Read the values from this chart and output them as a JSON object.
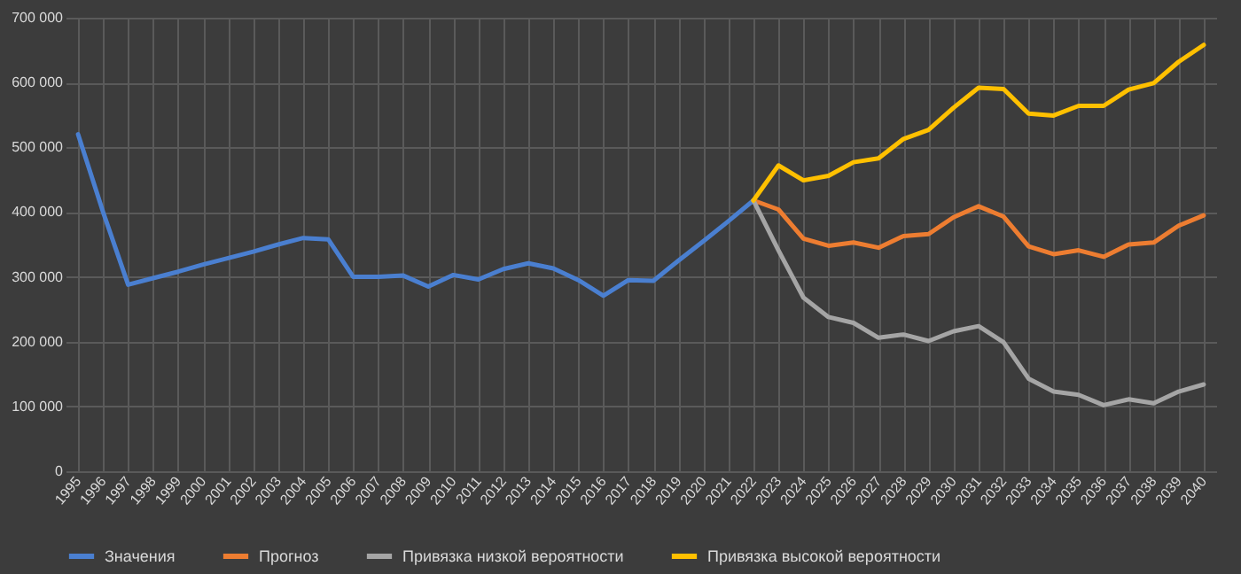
{
  "chart_data": {
    "type": "line",
    "categories": [
      "1995",
      "1996",
      "1997",
      "1998",
      "1999",
      "2000",
      "2001",
      "2002",
      "2003",
      "2004",
      "2005",
      "2006",
      "2007",
      "2008",
      "2009",
      "2010",
      "2011",
      "2012",
      "2013",
      "2014",
      "2015",
      "2016",
      "2017",
      "2018",
      "2019",
      "2020",
      "2021",
      "2022",
      "2023",
      "2024",
      "2025",
      "2026",
      "2027",
      "2028",
      "2029",
      "2030",
      "2031",
      "2032",
      "2033",
      "2034",
      "2035",
      "2036",
      "2037",
      "2038",
      "2039",
      "2040"
    ],
    "series": [
      {
        "name": "Значения",
        "color": "#4a7fd0",
        "values": [
          520000,
          400000,
          288000,
          298000,
          308000,
          319000,
          329000,
          339000,
          350000,
          360000,
          358000,
          300000,
          300000,
          302000,
          285000,
          303000,
          296000,
          312000,
          321000,
          313000,
          295000,
          271000,
          295000,
          294000,
          325000,
          355000,
          386000,
          418000,
          null,
          null,
          null,
          null,
          null,
          null,
          null,
          null,
          null,
          null,
          null,
          null,
          null,
          null,
          null,
          null,
          null,
          null
        ]
      },
      {
        "name": "Прогноз",
        "color": "#ed7d31",
        "values": [
          null,
          null,
          null,
          null,
          null,
          null,
          null,
          null,
          null,
          null,
          null,
          null,
          null,
          null,
          null,
          null,
          null,
          null,
          null,
          null,
          null,
          null,
          null,
          null,
          null,
          null,
          null,
          418000,
          404000,
          359000,
          348000,
          353000,
          345000,
          363000,
          366000,
          392000,
          409000,
          393000,
          347000,
          335000,
          341000,
          331000,
          350000,
          353000,
          379000,
          395000
        ]
      },
      {
        "name": "Привязка низкой вероятности",
        "color": "#a5a5a5",
        "values": [
          null,
          null,
          null,
          null,
          null,
          null,
          null,
          null,
          null,
          null,
          null,
          null,
          null,
          null,
          null,
          null,
          null,
          null,
          null,
          null,
          null,
          null,
          null,
          null,
          null,
          null,
          null,
          418000,
          341000,
          268000,
          238000,
          229000,
          206000,
          211000,
          201000,
          216000,
          224000,
          199000,
          143000,
          123000,
          118000,
          102000,
          111000,
          105000,
          123000,
          134000
        ]
      },
      {
        "name": "Привязка высокой вероятности",
        "color": "#ffc000",
        "values": [
          null,
          null,
          null,
          null,
          null,
          null,
          null,
          null,
          null,
          null,
          null,
          null,
          null,
          null,
          null,
          null,
          null,
          null,
          null,
          null,
          null,
          null,
          null,
          null,
          null,
          null,
          null,
          418000,
          472000,
          449000,
          456000,
          477000,
          483000,
          513000,
          527000,
          561000,
          592000,
          590000,
          552000,
          549000,
          564000,
          564000,
          589000,
          599000,
          632000,
          658000
        ]
      }
    ],
    "ylim": [
      0,
      700000
    ],
    "yticks": [
      0,
      {
        "value": 100000,
        "label": "100 000"
      },
      {
        "value": 200000,
        "label": "200 000"
      },
      {
        "value": 300000,
        "label": "300 000"
      },
      {
        "value": 400000,
        "label": "400 000"
      },
      {
        "value": 500000,
        "label": "500 000"
      },
      {
        "value": 600000,
        "label": "600 000"
      },
      {
        "value": 700000,
        "label": "700 000"
      }
    ],
    "grid": true,
    "legend": "bottom",
    "marker": "none",
    "line_style": "solid"
  }
}
